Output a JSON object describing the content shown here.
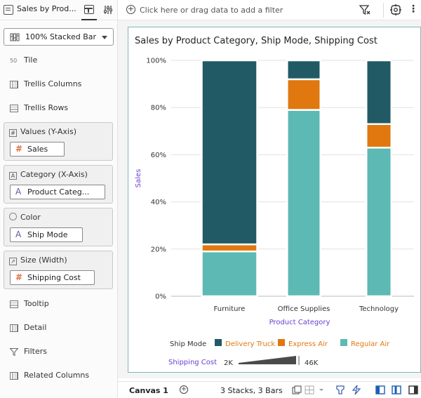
{
  "left_panel": {
    "title": "Sales by Prod...",
    "viz_type": "100% Stacked Bar",
    "items": {
      "tile": "Tile",
      "trellis_columns": "Trellis Columns",
      "trellis_rows": "Trellis Rows",
      "tooltip": "Tooltip",
      "detail": "Detail",
      "filters": "Filters",
      "related_columns": "Related Columns"
    },
    "wells": {
      "values": {
        "label": "Values (Y-Axis)",
        "field": "Sales"
      },
      "category": {
        "label": "Category (X-Axis)",
        "field": "Product Categ..."
      },
      "color": {
        "label": "Color",
        "field": "Ship Mode"
      },
      "size": {
        "label": "Size (Width)",
        "field": "Shipping Cost"
      }
    }
  },
  "filter_bar": {
    "placeholder": "Click here or drag data to add a filter"
  },
  "bottom_bar": {
    "canvas_tab": "Canvas 1",
    "status": "3 Stacks, 3 Bars"
  },
  "colors": {
    "delivery_truck": "#215a64",
    "express_air": "#e0780f",
    "regular_air": "#5db9b4",
    "accent": "#6a3fd1"
  },
  "chart_data": {
    "type": "bar",
    "stacked": "100%",
    "title": "Sales by Product Category, Ship Mode, Shipping Cost",
    "xlabel": "Product Category",
    "ylabel": "Sales",
    "ylim": [
      0,
      100
    ],
    "yticks": [
      "0%",
      "20%",
      "40%",
      "60%",
      "80%",
      "100%"
    ],
    "categories": [
      "Furniture",
      "Office Supplies",
      "Technology"
    ],
    "series": [
      {
        "name": "Regular Air",
        "values": [
          19,
          79,
          63
        ]
      },
      {
        "name": "Express Air",
        "values": [
          3,
          13,
          10
        ]
      },
      {
        "name": "Delivery Truck",
        "values": [
          78,
          8,
          27
        ]
      }
    ],
    "bar_width_relative": [
      1.0,
      0.6,
      0.45
    ],
    "legend": {
      "color_title": "Ship Mode",
      "entries": [
        "Delivery Truck",
        "Express Air",
        "Regular Air"
      ],
      "size_title": "Shipping Cost",
      "size_min": "2K",
      "size_max": "46K"
    }
  }
}
